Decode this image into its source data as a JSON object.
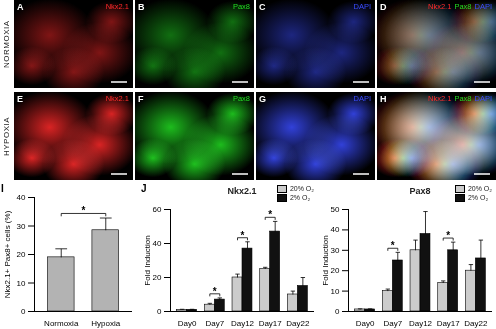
{
  "micrographs": {
    "rows": [
      "NORMOXIA",
      "HYPOXIA"
    ],
    "panels": [
      {
        "letter": "A",
        "row": 0,
        "stain": [
          {
            "text": "Nkx2.1",
            "color": "#ff2a2a"
          }
        ]
      },
      {
        "letter": "B",
        "row": 0,
        "stain": [
          {
            "text": "Pax8",
            "color": "#22dd22"
          }
        ]
      },
      {
        "letter": "C",
        "row": 0,
        "stain": [
          {
            "text": "DAPI",
            "color": "#3a4cff"
          }
        ]
      },
      {
        "letter": "D",
        "row": 0,
        "stain": [
          {
            "text": "Nkx2.1",
            "color": "#ff2a2a"
          },
          {
            "text": "Pax8",
            "color": "#22dd22"
          },
          {
            "text": "DAPI",
            "color": "#3a4cff"
          }
        ]
      },
      {
        "letter": "E",
        "row": 1,
        "stain": [
          {
            "text": "Nkx2.1",
            "color": "#ff2a2a"
          }
        ]
      },
      {
        "letter": "F",
        "row": 1,
        "stain": [
          {
            "text": "Pax8",
            "color": "#22dd22"
          }
        ]
      },
      {
        "letter": "G",
        "row": 1,
        "stain": [
          {
            "text": "DAPI",
            "color": "#3a4cff"
          }
        ]
      },
      {
        "letter": "H",
        "row": 1,
        "stain": [
          {
            "text": "Nkx2.1",
            "color": "#ff2a2a"
          },
          {
            "text": "Pax8",
            "color": "#22dd22"
          },
          {
            "text": "DAPI",
            "color": "#3a4cff"
          }
        ]
      }
    ]
  },
  "chart_data": [
    {
      "panel": "I",
      "type": "bar",
      "ylabel": "Nkx2.1+ Pax8+ cells (%)",
      "categories": [
        "Normoxia",
        "Hypoxia"
      ],
      "values": [
        19,
        28.5
      ],
      "errors": [
        3,
        4.3
      ],
      "color": "#b3b3b3",
      "ylim": [
        0,
        40
      ],
      "yticks": [
        0,
        10,
        20,
        30,
        40
      ],
      "significance": [
        {
          "categories": [
            "Normoxia",
            "Hypoxia"
          ],
          "label": "*"
        }
      ]
    },
    {
      "panel": "J",
      "type": "bar",
      "title": "Nkx2.1",
      "ylabel": "Fold Induction",
      "categories": [
        "Day0",
        "Day7",
        "Day12",
        "Day17",
        "Day22"
      ],
      "series": [
        {
          "name": "20% O₂",
          "color": "#cccccc",
          "values": [
            1,
            4,
            20,
            25,
            10
          ],
          "errors": [
            0.3,
            0.8,
            2,
            1,
            2
          ]
        },
        {
          "name": "2% O₂",
          "color": "#111111",
          "values": [
            1,
            7,
            37,
            47,
            15
          ],
          "errors": [
            0.3,
            1,
            4,
            6,
            5
          ]
        }
      ],
      "ylim": [
        0,
        60
      ],
      "yticks": [
        0,
        20,
        40,
        60
      ],
      "legend": "top-right",
      "significance": [
        {
          "categories": [
            "Day7"
          ],
          "label": "*"
        },
        {
          "categories": [
            "Day12"
          ],
          "label": "*"
        },
        {
          "categories": [
            "Day17"
          ],
          "label": "*"
        }
      ]
    },
    {
      "type": "bar",
      "title": "Pax8",
      "ylabel": "Fold Induction",
      "categories": [
        "Day0",
        "Day7",
        "Day12",
        "Day17",
        "Day22"
      ],
      "series": [
        {
          "name": "20% O₂",
          "color": "#cccccc",
          "values": [
            1,
            10,
            30,
            14,
            20
          ],
          "errors": [
            0.3,
            1,
            5,
            1,
            3
          ]
        },
        {
          "name": "2% O₂",
          "color": "#111111",
          "values": [
            1,
            25,
            38,
            30,
            26
          ],
          "errors": [
            0.3,
            4,
            11,
            4,
            9
          ]
        }
      ],
      "ylim": [
        0,
        50
      ],
      "yticks": [
        0,
        10,
        20,
        30,
        40,
        50
      ],
      "legend": "top-right",
      "significance": [
        {
          "categories": [
            "Day7"
          ],
          "label": "*"
        },
        {
          "categories": [
            "Day17"
          ],
          "label": "*"
        }
      ]
    }
  ]
}
